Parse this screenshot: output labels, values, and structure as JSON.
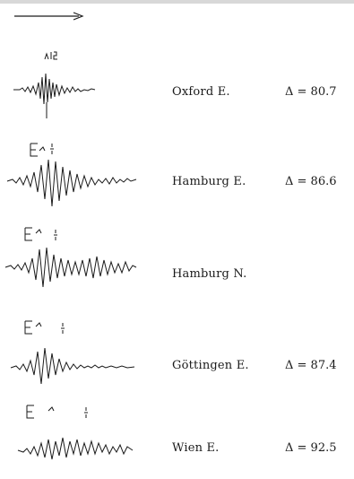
{
  "records": [
    {
      "station": "Oxford E.",
      "distance": "Δ = 80.7"
    },
    {
      "station": "Hamburg E.",
      "distance": "Δ = 86.6"
    },
    {
      "station": "Hamburg N.",
      "distance": ""
    },
    {
      "station": "Göttingen E.",
      "distance": "Δ = 87.4"
    },
    {
      "station": "Wien E.",
      "distance": "Δ = 92.5"
    }
  ],
  "ink_color": "#1a1a1a"
}
